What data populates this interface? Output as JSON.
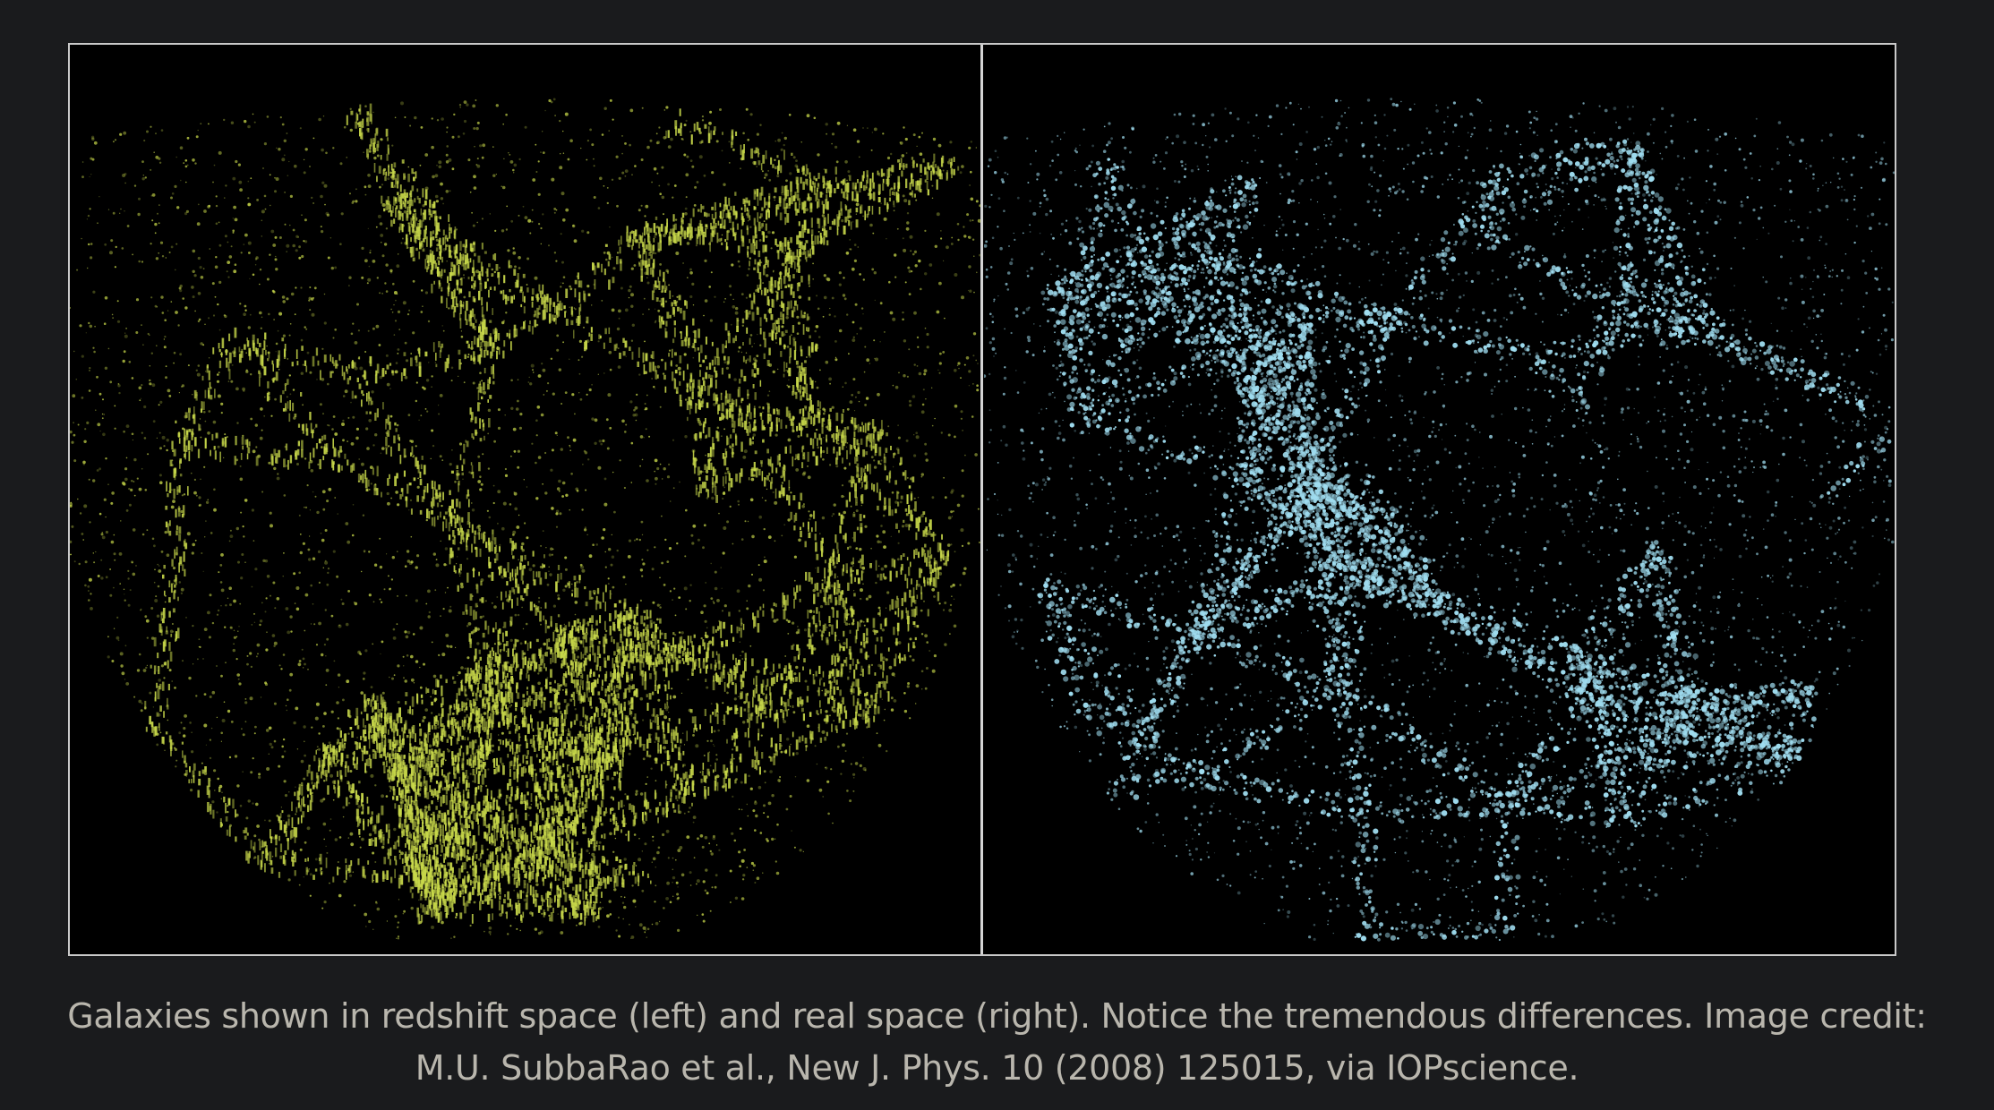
{
  "figure": {
    "left_panel": {
      "subject": "galaxies in redshift space",
      "color": "#c8d84a"
    },
    "right_panel": {
      "subject": "galaxies in real space",
      "color": "#9fdcef"
    },
    "frame_color": "#c9c9c9",
    "background_color": "#1a1b1d"
  },
  "caption": {
    "line1": "Galaxies shown in redshift space (left) and real space (right). Notice the tremendous differences. Image credit:",
    "line2": "M.U. SubbaRao et al., New J. Phys. 10 (2008) 125015, via IOPscience."
  }
}
